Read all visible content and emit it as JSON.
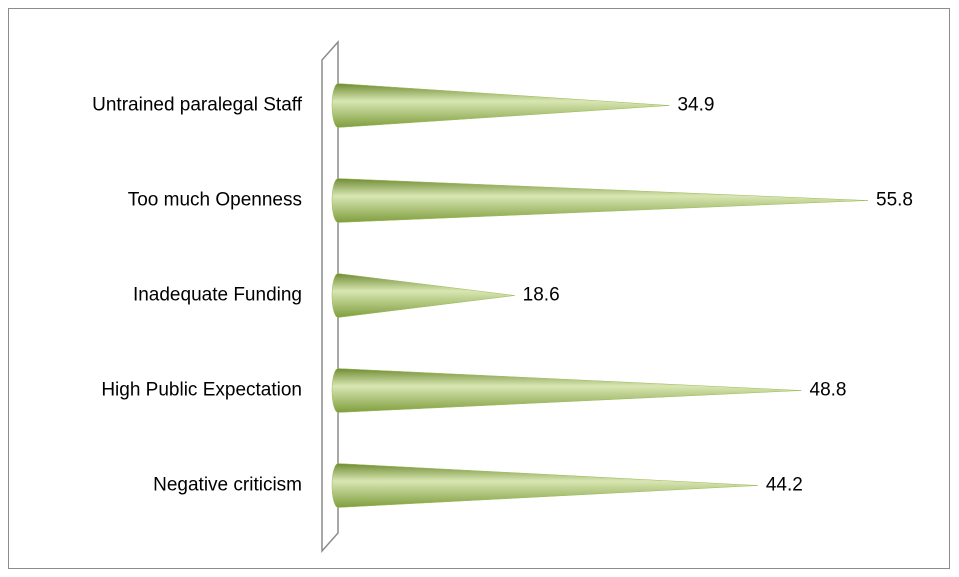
{
  "chart_data": {
    "type": "cone-bar",
    "categories": [
      "Untrained paralegal Staff",
      "Too much Openness",
      "Inadequate Funding",
      "High Public Expectation",
      "Negative criticism"
    ],
    "values": [
      34.9,
      55.8,
      18.6,
      48.8,
      44.2
    ],
    "color": "#9bbb59"
  }
}
